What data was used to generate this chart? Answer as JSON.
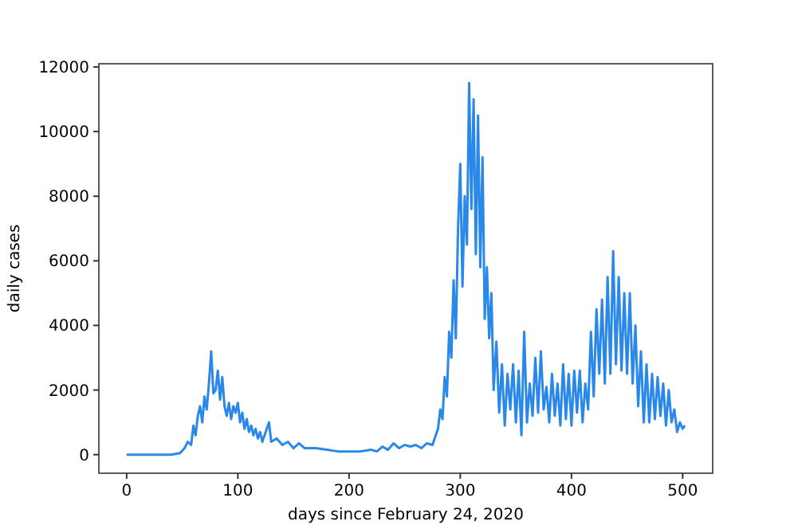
{
  "chart_data": {
    "type": "line",
    "xlabel": "days since February 24, 2020",
    "ylabel": "daily cases",
    "xlim": [
      -25,
      527
    ],
    "ylim": [
      -575,
      12100
    ],
    "xticks": [
      0,
      100,
      200,
      300,
      400,
      500
    ],
    "yticks": [
      0,
      2000,
      4000,
      6000,
      8000,
      10000,
      12000
    ],
    "grid": false,
    "x": [
      0,
      40,
      48,
      52,
      55,
      58,
      60,
      62,
      64,
      66,
      68,
      70,
      72,
      74,
      76,
      78,
      80,
      82,
      84,
      86,
      88,
      90,
      92,
      94,
      96,
      98,
      100,
      102,
      104,
      106,
      108,
      110,
      112,
      114,
      116,
      118,
      120,
      122,
      128,
      130,
      135,
      140,
      145,
      150,
      155,
      160,
      170,
      180,
      190,
      200,
      210,
      220,
      225,
      230,
      235,
      240,
      245,
      250,
      255,
      260,
      265,
      270,
      275,
      278,
      280,
      282,
      284,
      286,
      288,
      290,
      292,
      294,
      296,
      298,
      300,
      302,
      304,
      306,
      308,
      310,
      312,
      314,
      316,
      318,
      320,
      322,
      324,
      326,
      328,
      330,
      332.5,
      335,
      337.5,
      340,
      342.5,
      345,
      347.5,
      350,
      352.5,
      355,
      357.5,
      360,
      362.5,
      365,
      367.5,
      370,
      372.5,
      375,
      377.5,
      380,
      382.5,
      385,
      387.5,
      390,
      392.5,
      395,
      397.5,
      400,
      402.5,
      405,
      407.5,
      410,
      412.5,
      415,
      417.5,
      420,
      422.5,
      425,
      427.5,
      430,
      432.5,
      435,
      437.5,
      440,
      442.5,
      445,
      447.5,
      450,
      452.5,
      455,
      457.5,
      460,
      462.5,
      465,
      467.5,
      470,
      472.5,
      475,
      477.5,
      480,
      482.5,
      485,
      487.5,
      490,
      492.5,
      495,
      497.5,
      500,
      502
    ],
    "series": [
      {
        "color": "#2a88e8",
        "values": [
          0,
          0,
          50,
          200,
          400,
          300,
          900,
          600,
          1200,
          1500,
          1000,
          1800,
          1400,
          2200,
          3200,
          1900,
          2000,
          2600,
          1700,
          2400,
          1500,
          1200,
          1600,
          1100,
          1500,
          1300,
          1600,
          1000,
          1300,
          800,
          1100,
          700,
          900,
          600,
          800,
          500,
          700,
          400,
          1000,
          400,
          500,
          300,
          400,
          200,
          350,
          200,
          200,
          150,
          100,
          100,
          100,
          150,
          100,
          250,
          150,
          350,
          200,
          300,
          250,
          300,
          200,
          350,
          300,
          600,
          800,
          1400,
          1100,
          2400,
          1800,
          3800,
          3000,
          5400,
          3600,
          7000,
          9000,
          5200,
          8000,
          6500,
          11500,
          7600,
          11000,
          6200,
          10500,
          5800,
          9200,
          4200,
          5800,
          3600,
          5000,
          2000,
          3500,
          1300,
          2800,
          900,
          2500,
          1400,
          2800,
          1000,
          2600,
          600,
          3800,
          1000,
          2200,
          1200,
          3000,
          1300,
          3200,
          1400,
          2100,
          1000,
          2500,
          1200,
          2200,
          900,
          2800,
          1100,
          2500,
          900,
          2600,
          1300,
          2600,
          1000,
          2200,
          1400,
          3800,
          1800,
          4500,
          2500,
          4800,
          2200,
          5500,
          2500,
          6300,
          2800,
          5500,
          2600,
          5000,
          2500,
          5000,
          2200,
          4000,
          1500,
          3200,
          1000,
          2800,
          1000,
          2500,
          1100,
          2400,
          1200,
          2200,
          900,
          2000,
          1000,
          1400,
          700,
          1000,
          800,
          900
        ]
      }
    ]
  }
}
